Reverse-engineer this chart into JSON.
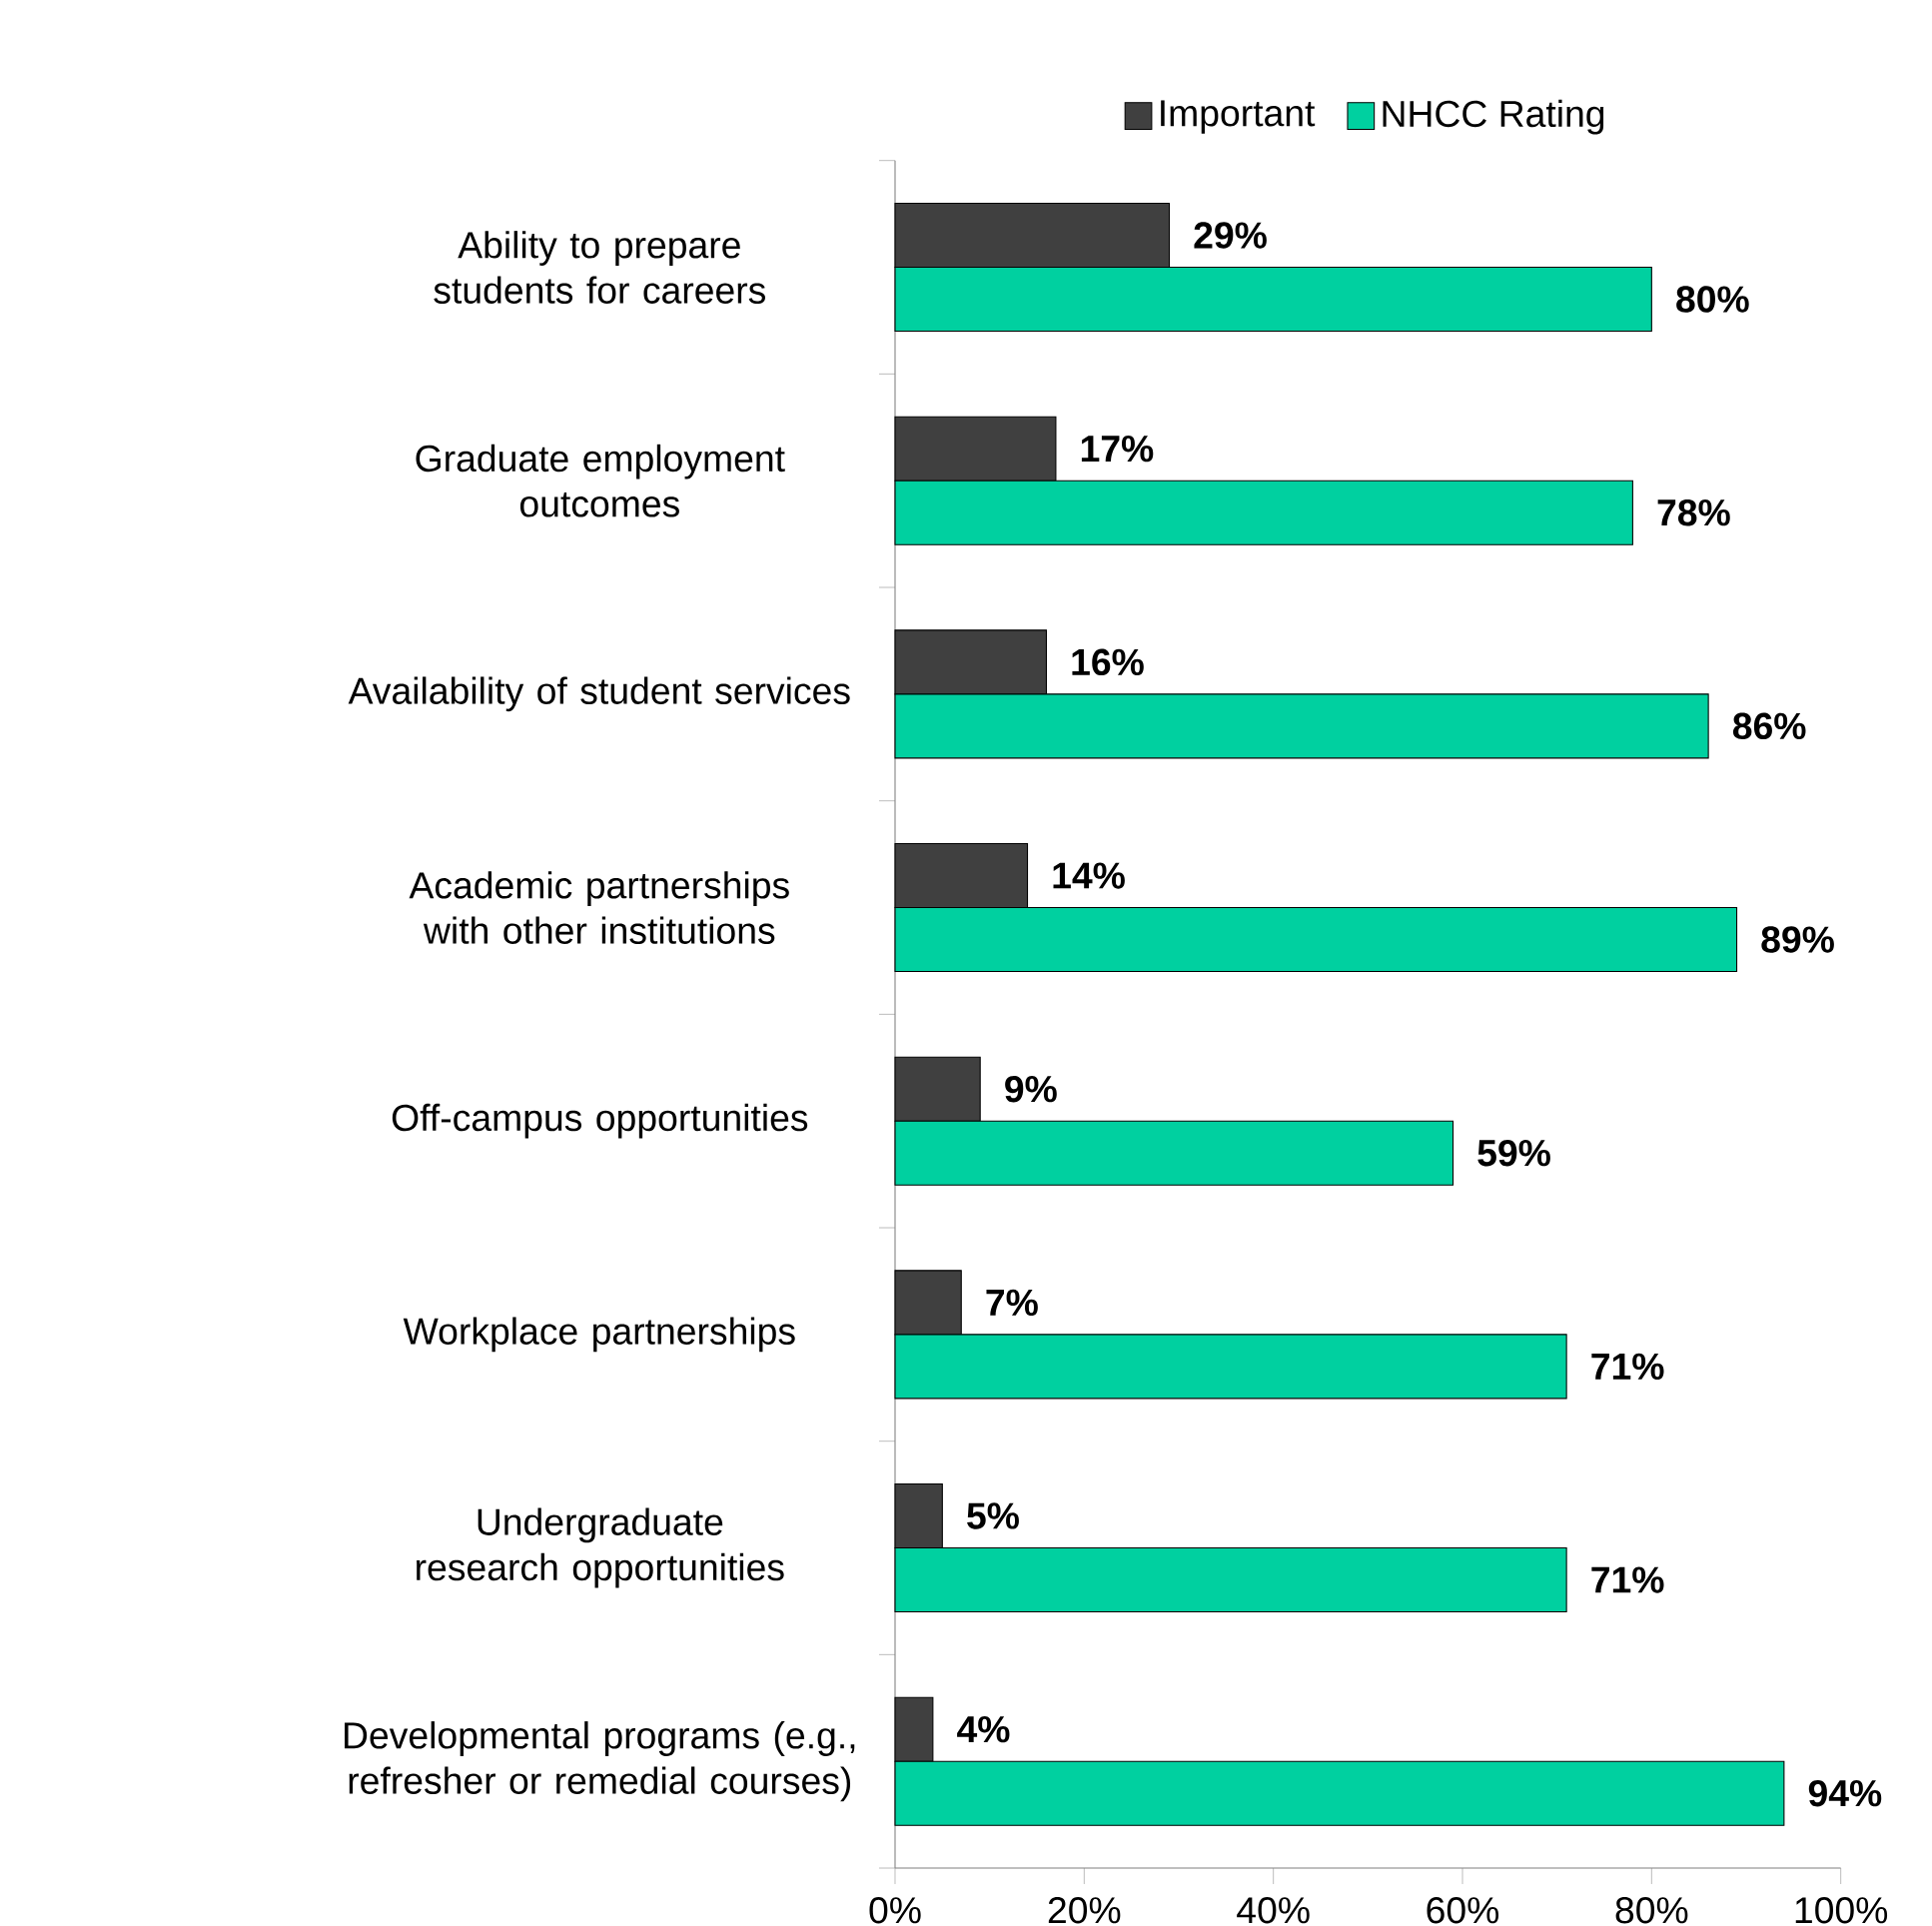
{
  "chart_data": {
    "type": "bar",
    "orientation": "horizontal",
    "legend": "top",
    "categories": [
      "Ability to prepare students for careers",
      "Graduate employment outcomes",
      "Availability of student services",
      "Academic partnerships with other institutions",
      "Off-campus opportunities",
      "Workplace partnerships",
      "Undergraduate research opportunities",
      "Developmental programs (e.g., refresher or remedial courses)"
    ],
    "series": [
      {
        "name": "Important",
        "color": "#404040",
        "values": [
          29,
          17,
          16,
          14,
          9,
          7,
          5,
          4
        ],
        "value_labels": [
          "29%",
          "17%",
          "16%",
          "14%",
          "9%",
          "7%",
          "5%",
          "4%"
        ]
      },
      {
        "name": "NHCC Rating",
        "color": "#00d0a0",
        "values": [
          80,
          78,
          86,
          89,
          59,
          71,
          71,
          94
        ],
        "value_labels": [
          "80%",
          "78%",
          "86%",
          "89%",
          "59%",
          "71%",
          "71%",
          "94%"
        ]
      }
    ],
    "xlim": [
      0,
      100
    ],
    "xticks": [
      {
        "value": 0,
        "label": "0%"
      },
      {
        "value": 20,
        "label": "20%"
      },
      {
        "value": 40,
        "label": "40%"
      },
      {
        "value": 60,
        "label": "60%"
      },
      {
        "value": 80,
        "label": "80%"
      },
      {
        "value": 100,
        "label": "100%"
      }
    ]
  }
}
